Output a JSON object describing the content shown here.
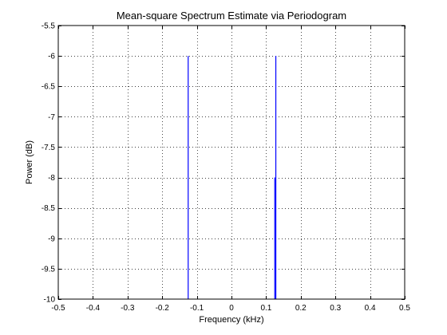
{
  "chart_data": {
    "type": "line",
    "title": "Mean-square Spectrum Estimate via Periodogram",
    "xlabel": "Frequency (kHz)",
    "ylabel": "Power (dB)",
    "xlim": [
      -0.5,
      0.5
    ],
    "ylim": [
      -10,
      -5.5
    ],
    "xticks": [
      -0.5,
      -0.4,
      -0.3,
      -0.2,
      -0.1,
      0,
      0.1,
      0.2,
      0.3,
      0.4,
      0.5
    ],
    "xtick_labels": [
      "-0.5",
      "-0.4",
      "-0.3",
      "-0.2",
      "-0.1",
      "0",
      "0.1",
      "0.2",
      "0.3",
      "0.4",
      "0.5"
    ],
    "yticks": [
      -10,
      -9.5,
      -9,
      -8.5,
      -8,
      -7.5,
      -7,
      -6.5,
      -6,
      -5.5
    ],
    "ytick_labels": [
      "-10",
      "-9.5",
      "-9",
      "-8.5",
      "-8",
      "-7.5",
      "-7",
      "-6.5",
      "-6",
      "-5.5"
    ],
    "grid": true,
    "series": [
      {
        "color": "#0000ff",
        "segments": [
          {
            "x": -0.125,
            "y_from": -10,
            "y_to": -6
          },
          {
            "x": 0.125,
            "y_from": -10,
            "y_to": -8
          },
          {
            "x": 0.128,
            "y_from": -10,
            "y_to": -6
          }
        ]
      }
    ]
  }
}
